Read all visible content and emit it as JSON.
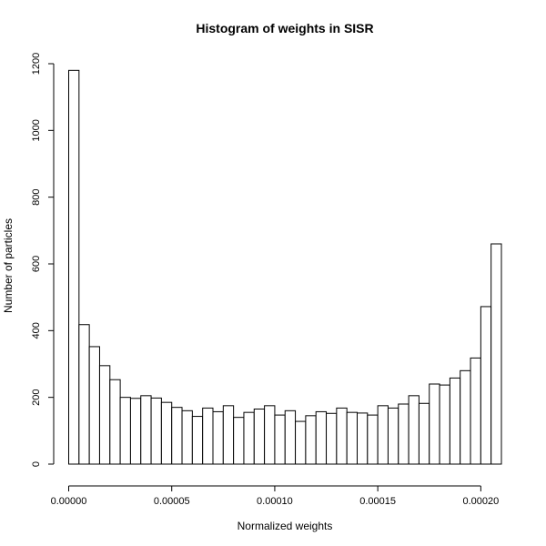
{
  "chart_data": {
    "type": "bar",
    "title": "Histogram of weights in SISR",
    "xlabel": "Normalized weights",
    "ylabel": "Number of particles",
    "x_ticks": [
      0,
      5e-05,
      0.0001,
      0.00015,
      0.0002
    ],
    "x_tick_labels": [
      "0.00000",
      "0.00005",
      "0.00010",
      "0.00015",
      "0.00020"
    ],
    "y_ticks": [
      0,
      200,
      400,
      600,
      800,
      1000,
      1200
    ],
    "y_tick_labels": [
      "0",
      "200",
      "400",
      "600",
      "800",
      "1000",
      "1200"
    ],
    "bin_start": 0.0,
    "bin_width": 5e-06,
    "values": [
      1180,
      418,
      352,
      295,
      253,
      200,
      197,
      205,
      198,
      185,
      170,
      160,
      143,
      168,
      157,
      175,
      140,
      155,
      165,
      175,
      147,
      160,
      128,
      145,
      157,
      152,
      168,
      155,
      153,
      147,
      175,
      168,
      180,
      205,
      182,
      240,
      237,
      258,
      280,
      318,
      472,
      660
    ],
    "xlim": [
      0.0,
      0.00021
    ],
    "ylim": [
      0,
      1200
    ],
    "grid": false,
    "legend": "none",
    "bar_fill": "#ffffff",
    "bar_stroke": "#000000"
  }
}
